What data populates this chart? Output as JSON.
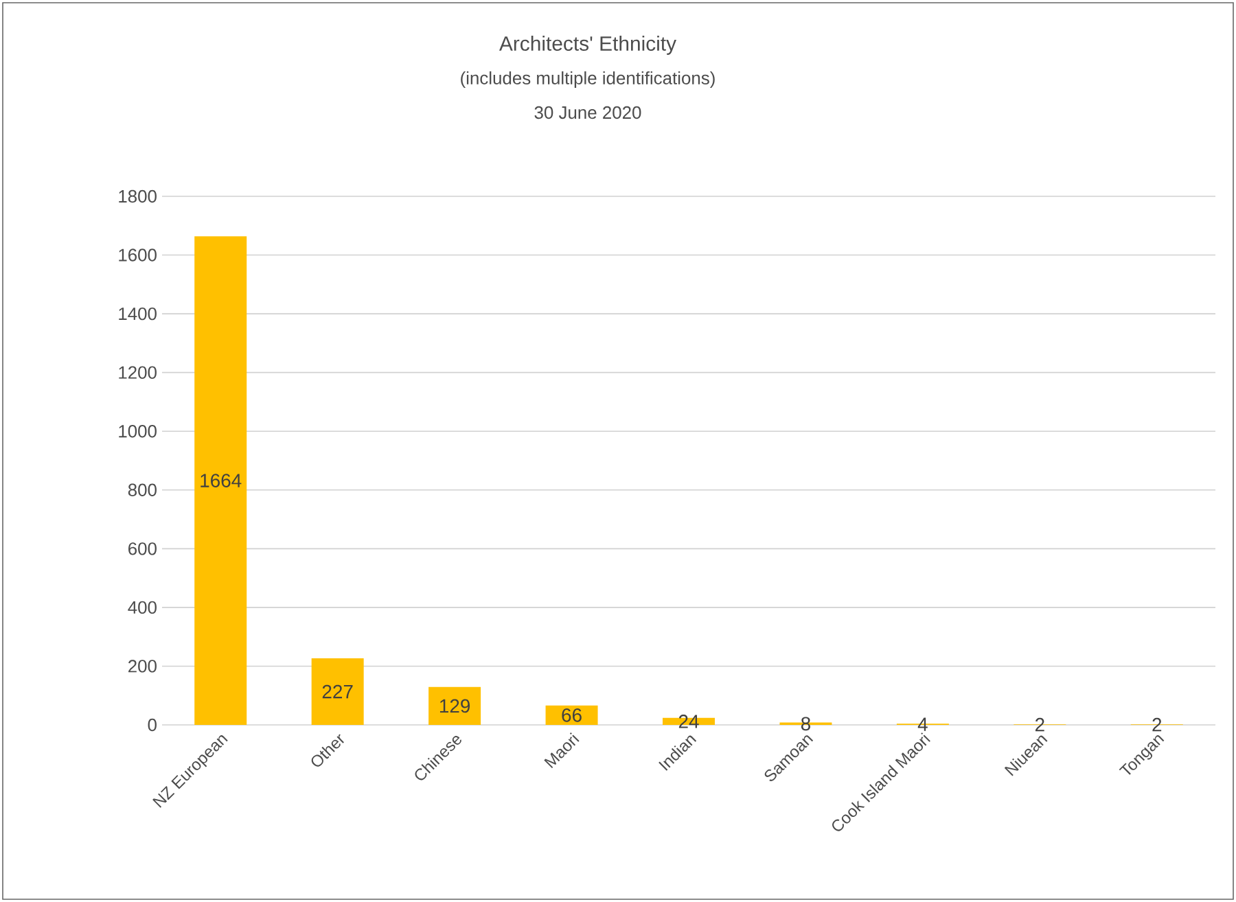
{
  "chart_data": {
    "type": "bar",
    "title": "Architects' Ethnicity",
    "subtitle": "(includes multiple identifications)",
    "annotations": [
      "30 June 2020"
    ],
    "categories": [
      "NZ European",
      "Other",
      "Chinese",
      "Maori",
      "Indian",
      "Samoan",
      "Cook Island Maori",
      "Niuean",
      "Tongan"
    ],
    "values": [
      1664,
      227,
      129,
      66,
      24,
      8,
      4,
      2,
      2
    ],
    "color": "#ffc000",
    "data_labels": true,
    "grid": "y",
    "ylim": [
      0,
      1800
    ],
    "yticks": [
      0,
      200,
      400,
      600,
      800,
      1000,
      1200,
      1400,
      1600,
      1800
    ]
  }
}
